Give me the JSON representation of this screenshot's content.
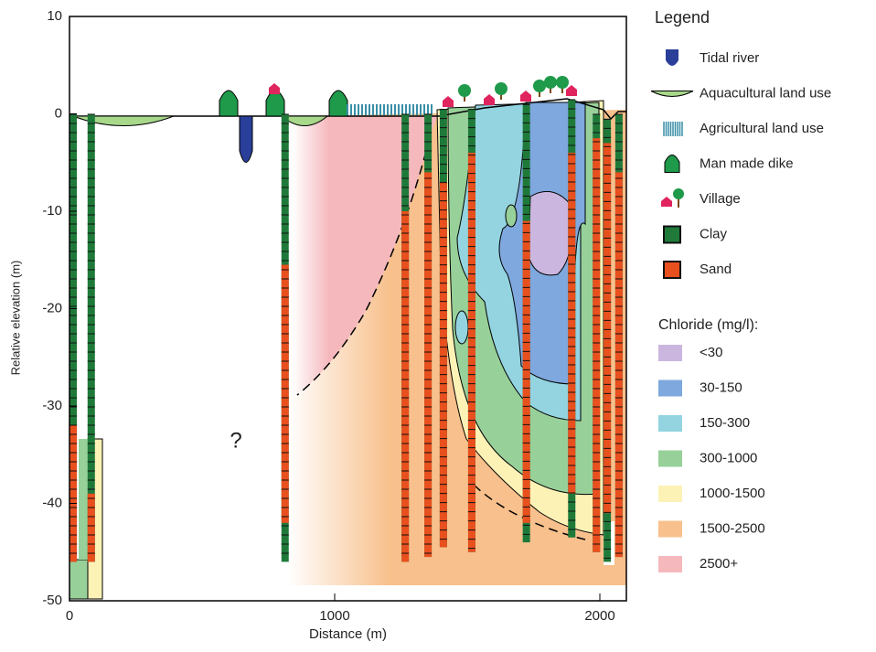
{
  "chart_data": {
    "type": "section",
    "xlabel": "Distance (m)",
    "ylabel": "Relative elevation (m)",
    "xlim": [
      0,
      2100
    ],
    "ylim": [
      -50,
      10
    ],
    "xticks": [
      0,
      1000,
      2000
    ],
    "yticks": [
      10,
      0,
      -10,
      -20,
      -30,
      -40,
      -50
    ],
    "annotation": "?",
    "legend": {
      "title": "Legend",
      "items": [
        {
          "name": "Tidal river",
          "color": "#2a3f9a"
        },
        {
          "name": "Aquacultural land use",
          "color": "#a8d88a"
        },
        {
          "name": "Agricultural land use",
          "color": "#3a8fa8"
        },
        {
          "name": "Man made dike",
          "color": "#1e9a4a"
        },
        {
          "name": "Village",
          "color": "#e0245e"
        },
        {
          "name": "Clay",
          "color": "#1f7a3a"
        },
        {
          "name": "Sand",
          "color": "#e8501e"
        }
      ]
    },
    "chloride": {
      "title": "Chloride (mg/l):",
      "classes": [
        {
          "name": "<30",
          "color": "#cbb6df"
        },
        {
          "name": "30-150",
          "color": "#7ea8de"
        },
        {
          "name": "150-300",
          "color": "#93d4e0"
        },
        {
          "name": "300-1000",
          "color": "#98d09a"
        },
        {
          "name": "1000-1500",
          "color": "#fcf2b6"
        },
        {
          "name": "1500-2500",
          "color": "#f8c08c"
        },
        {
          "name": "2500+",
          "color": "#f5b9bd"
        }
      ]
    },
    "boreholes": [
      {
        "x": 14,
        "top": 0,
        "bottom": -46,
        "sand": [
          -32,
          -46
        ]
      },
      {
        "x": 82,
        "top": 0,
        "bottom": -46,
        "sand": [
          -39,
          -46
        ]
      },
      {
        "x": 813,
        "top": 0,
        "bottom": -46,
        "sand": [
          -15.5,
          -42
        ]
      },
      {
        "x": 1266,
        "top": 0,
        "bottom": -46,
        "sand": [
          -10,
          -46
        ]
      },
      {
        "x": 1352,
        "top": 0,
        "bottom": -45.5,
        "sand": [
          -6,
          -45.5
        ]
      },
      {
        "x": 1410,
        "top": 0.5,
        "bottom": -44.5,
        "sand": [
          -7,
          -44.5
        ]
      },
      {
        "x": 1517,
        "top": 0.5,
        "bottom": -45,
        "sand": [
          -4,
          -45
        ]
      },
      {
        "x": 1723,
        "top": 1,
        "bottom": -44,
        "sand": [
          -11,
          -42
        ]
      },
      {
        "x": 1894,
        "top": 1.5,
        "bottom": -43.5,
        "sand": [
          -4,
          -39
        ]
      },
      {
        "x": 1987,
        "top": 0,
        "bottom": -45,
        "sand": [
          -2.5,
          -45
        ]
      },
      {
        "x": 2028,
        "top": -0.5,
        "bottom": -46,
        "sand": [
          -3,
          -41
        ]
      },
      {
        "x": 2072,
        "top": 0,
        "bottom": -45.5,
        "sand": [
          -6,
          -45.5
        ]
      }
    ]
  }
}
